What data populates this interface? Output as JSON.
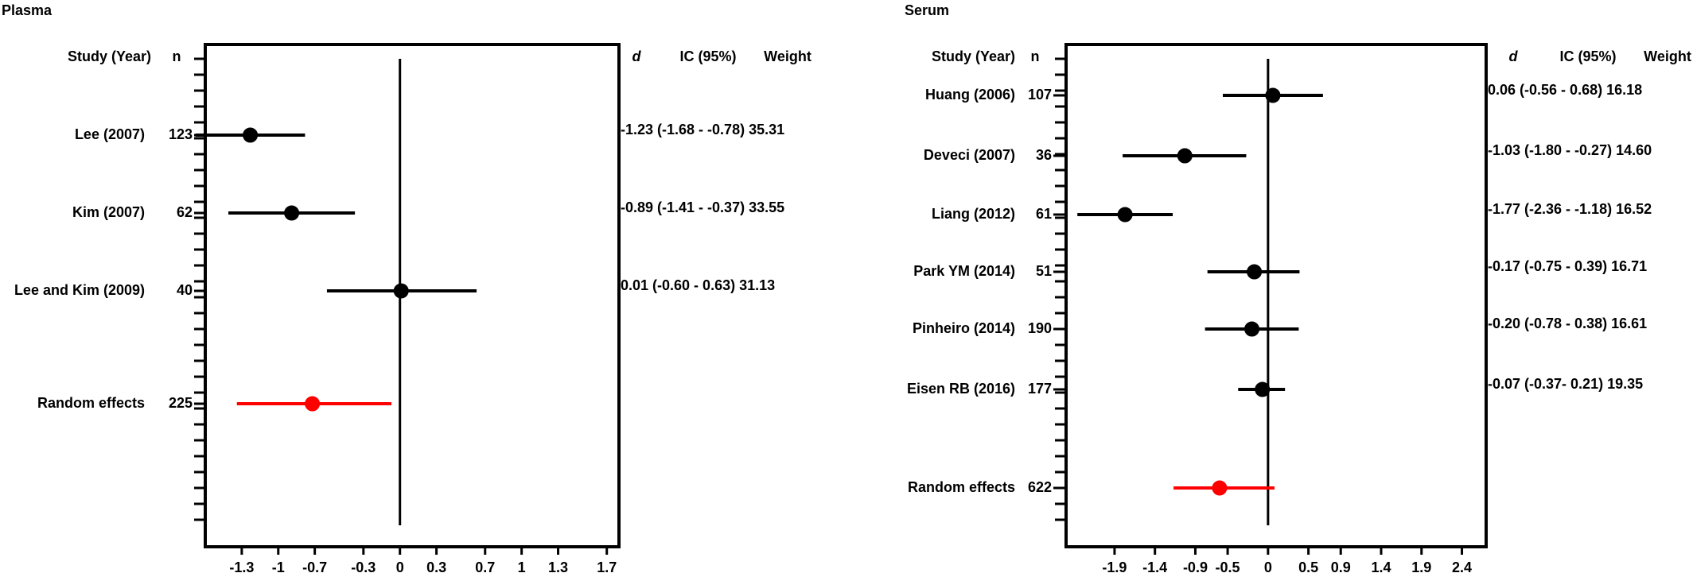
{
  "chart_data": [
    {
      "type": "scatter",
      "panel": "Plasma",
      "title": "Plasma",
      "headers": {
        "study": "Study (Year)",
        "n": "n",
        "d": "d",
        "ci": "IC (95%)",
        "weight": "Weight"
      },
      "xlabel": "",
      "ylabel": "",
      "xlim": [
        -1.6,
        1.8
      ],
      "x_ticks": [
        -1.3,
        -1,
        -0.7,
        -0.3,
        0,
        0.3,
        0.7,
        1,
        1.3,
        1.7
      ],
      "x_tick_labels": [
        "-1.3",
        "-1",
        "-0.7",
        "-0.3",
        "0",
        "0.3",
        "0.7",
        "1",
        "1.3",
        "1.7"
      ],
      "studies": [
        {
          "label": "Lee (2007)",
          "n": "123",
          "d": -1.23,
          "ci_low": -1.68,
          "ci_high": -0.78,
          "summary": "-1.23 (-1.68  -  -0.78) 35.31",
          "color": "#000000"
        },
        {
          "label": "Kim (2007)",
          "n": "62",
          "d": -0.89,
          "ci_low": -1.41,
          "ci_high": -0.37,
          "summary": "-0.89 (-1.41 -  -0.37)  33.55",
          "color": "#000000"
        },
        {
          "label": "Lee and Kim (2009)",
          "n": "40",
          "d": 0.01,
          "ci_low": -0.6,
          "ci_high": 0.63,
          "summary": "0.01  (-0.60 -  0.63)   31.13",
          "color": "#000000"
        },
        {
          "label": "Random effects",
          "n": "225",
          "d": -0.72,
          "ci_low": -1.34,
          "ci_high": -0.07,
          "summary": "",
          "color": "#ff0000"
        }
      ]
    },
    {
      "type": "scatter",
      "panel": "Serum",
      "title": "Serum",
      "headers": {
        "study": "Study (Year)",
        "n": "n",
        "d": "d",
        "ci": "IC (95%)",
        "weight": "Weight"
      },
      "xlabel": "",
      "ylabel": "",
      "xlim": [
        -2.5,
        2.7
      ],
      "x_ticks": [
        -1.9,
        -1.4,
        -0.9,
        -0.5,
        0,
        0.5,
        0.9,
        1.4,
        1.9,
        2.4
      ],
      "x_tick_labels": [
        "-1.9",
        "-1.4",
        "-0.9",
        "-0.5",
        "0",
        "0.5",
        "0.9",
        "1.4",
        "1.9",
        "2.4"
      ],
      "studies": [
        {
          "label": "Huang (2006)",
          "n": "107",
          "d": 0.06,
          "ci_low": -0.56,
          "ci_high": 0.68,
          "summary": "0.06  (-0.56  -  0.68)  16.18",
          "color": "#000000"
        },
        {
          "label": "Deveci (2007)",
          "n": "36",
          "d": -1.03,
          "ci_low": -1.8,
          "ci_high": -0.27,
          "summary": "-1.03 (-1.80 -  -0.27)  14.60",
          "color": "#000000"
        },
        {
          "label": "Liang (2012)",
          "n": "61",
          "d": -1.77,
          "ci_low": -2.36,
          "ci_high": -1.18,
          "summary": "-1.77 (-2.36 -  -1.18)  16.52",
          "color": "#000000"
        },
        {
          "label": "Park YM (2014)",
          "n": "51",
          "d": -0.17,
          "ci_low": -0.75,
          "ci_high": 0.39,
          "summary": "-0.17 (-0.75 -  0.39)   16.71",
          "color": "#000000"
        },
        {
          "label": "Pinheiro (2014)",
          "n": "190",
          "d": -0.2,
          "ci_low": -0.78,
          "ci_high": 0.38,
          "summary": "-0.20 (-0.78 -  0.38)   16.61",
          "color": "#000000"
        },
        {
          "label": "Eisen RB (2016)",
          "n": "177",
          "d": -0.07,
          "ci_low": -0.37,
          "ci_high": 0.21,
          "summary": "-0.07 (-0.37-  0.21)    19.35",
          "color": "#000000"
        },
        {
          "label": "Random effects",
          "n": "622",
          "d": -0.6,
          "ci_low": -1.17,
          "ci_high": 0.08,
          "summary": "",
          "color": "#ff0000"
        }
      ]
    }
  ]
}
